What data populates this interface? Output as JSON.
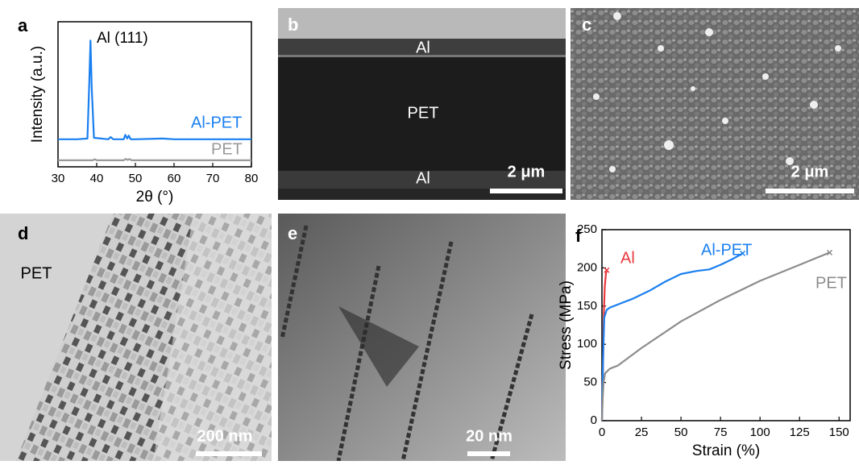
{
  "panel_labels": [
    "a",
    "b",
    "c",
    "d",
    "e",
    "f"
  ],
  "images": {
    "b": {
      "labels": [
        "Al",
        "PET",
        "Al"
      ],
      "scale_bar": "2 μm"
    },
    "c": {
      "scale_bar": "2 μm"
    },
    "d": {
      "labels": [
        "PET"
      ],
      "scale_bar": "200 nm"
    },
    "e": {
      "scale_bar": "20 nm"
    }
  },
  "chart_data": [
    {
      "type": "line",
      "xlabel": "2θ (°)",
      "ylabel": "Intensity (a.u.)",
      "annotation": "Al (111)",
      "xlim": [
        30,
        80
      ],
      "xticks": [
        30,
        40,
        50,
        60,
        70,
        80
      ],
      "ylim": [
        0,
        100
      ],
      "series": [
        {
          "name": "Al-PET",
          "color": "#1a7ff0",
          "x": [
            30,
            35,
            37.6,
            38.1,
            38.4,
            38.7,
            39.3,
            43,
            43.6,
            44.3,
            47,
            47.4,
            47.9,
            48.3,
            48.8,
            50,
            57,
            60,
            65,
            80
          ],
          "values": [
            19,
            19,
            19.5,
            60,
            87,
            55,
            20,
            19,
            20.5,
            19,
            19,
            22,
            19.5,
            21.5,
            19,
            19,
            19.5,
            19,
            19,
            19
          ]
        },
        {
          "name": "PET",
          "color": "#999999",
          "x": [
            30,
            39,
            39.5,
            40,
            47,
            47.5,
            48,
            48.5,
            49,
            55,
            80
          ],
          "values": [
            4.5,
            4.5,
            5.2,
            4.5,
            4.5,
            5.5,
            4.7,
            5.4,
            4.5,
            4.5,
            4.5
          ]
        }
      ]
    },
    {
      "type": "line",
      "xlabel": "Strain (%)",
      "ylabel": "Stress (MPa)",
      "xlim": [
        0,
        157
      ],
      "xticks": [
        0,
        25,
        50,
        75,
        100,
        125,
        150
      ],
      "ylim": [
        0,
        250
      ],
      "yticks": [
        0,
        50,
        100,
        150,
        200,
        250
      ],
      "series": [
        {
          "name": "Al",
          "color": "#e8383d",
          "x": [
            0,
            0.8,
            1.2,
            1.8,
            2.5,
            3
          ],
          "values": [
            0,
            90,
            140,
            175,
            192,
            197
          ]
        },
        {
          "name": "Al-PET",
          "color": "#1a7ff0",
          "x": [
            0,
            0.8,
            1.5,
            3,
            5,
            10,
            20,
            30,
            40,
            50,
            60,
            68,
            75,
            82,
            89
          ],
          "values": [
            0,
            90,
            135,
            145,
            148,
            152,
            160,
            170,
            182,
            192,
            196,
            198,
            204,
            211,
            219
          ]
        },
        {
          "name": "PET",
          "color": "#8c8c8c",
          "x": [
            0,
            0.5,
            1,
            2,
            5,
            10,
            25,
            50,
            75,
            100,
            125,
            144
          ],
          "values": [
            0,
            30,
            50,
            62,
            68,
            72,
            95,
            130,
            158,
            183,
            204,
            220
          ]
        }
      ]
    }
  ]
}
